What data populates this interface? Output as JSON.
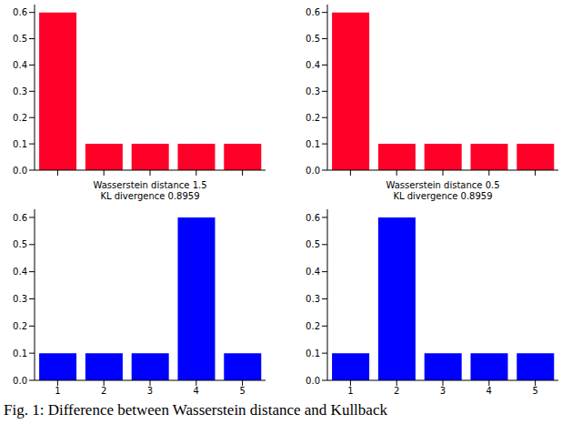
{
  "chart_data": [
    {
      "type": "bar",
      "categories": [
        null,
        null,
        null,
        null,
        null
      ],
      "values": [
        0.6,
        0.1,
        0.1,
        0.1,
        0.1
      ],
      "color": "#ff0028",
      "ylim": [
        0,
        0.63
      ],
      "yticks": [
        {
          "value": 0,
          "label": "0.0"
        },
        0.1,
        0.2,
        0.3,
        0.4,
        0.5,
        0.6
      ],
      "tick_labels": "y",
      "xlabel": "Wasserstein distance 1.5\nKL divergence 0.8959"
    },
    {
      "type": "bar",
      "categories": [
        null,
        null,
        null,
        null,
        null
      ],
      "values": [
        0.6,
        0.1,
        0.1,
        0.1,
        0.1
      ],
      "color": "#ff0028",
      "ylim": [
        0,
        0.63
      ],
      "yticks": [
        {
          "value": 0,
          "label": "0.0"
        },
        0.1,
        0.2,
        0.3,
        0.4,
        0.5,
        0.6
      ],
      "tick_labels": "y",
      "xlabel": "Wasserstein distance 0.5\nKL divergence 0.8959"
    },
    {
      "type": "bar",
      "categories": [
        "1",
        "2",
        "3",
        "4",
        "5"
      ],
      "values": [
        0.1,
        0.1,
        0.1,
        0.6,
        0.1
      ],
      "color": "#0000ff",
      "ylim": [
        0,
        0.63
      ],
      "yticks": [
        {
          "value": 0,
          "label": "0.0"
        },
        0.1,
        0.2,
        0.3,
        0.4,
        0.5,
        0.6
      ]
    },
    {
      "type": "bar",
      "categories": [
        "1",
        "2",
        "3",
        "4",
        "5"
      ],
      "values": [
        0.1,
        0.6,
        0.1,
        0.1,
        0.1
      ],
      "color": "#0000ff",
      "ylim": [
        0,
        0.63
      ],
      "yticks": [
        {
          "value": 0,
          "label": "0.0"
        },
        0.1,
        0.2,
        0.3,
        0.4,
        0.5,
        0.6
      ]
    }
  ],
  "caption": "Fig. 1: Difference between Wasserstein distance and Kullback"
}
